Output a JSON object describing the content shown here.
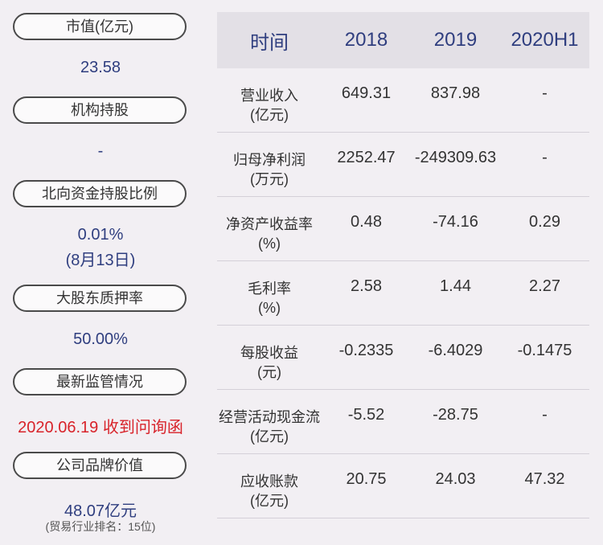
{
  "left": {
    "market_cap": {
      "label": "市值(亿元)",
      "value": "23.58"
    },
    "institutional": {
      "label": "机构持股",
      "value": "-"
    },
    "northbound": {
      "label": "北向资金持股比例",
      "value": "0.01%",
      "note": "(8月13日)"
    },
    "pledge": {
      "label": "大股东质押率",
      "value": "50.00%"
    },
    "regulation": {
      "label": "最新监管情况",
      "value": "2020.06.19 收到问询函"
    },
    "brand": {
      "label": "公司品牌价值",
      "value": "48.07亿元",
      "note": "(贸易行业排名：15位)"
    }
  },
  "table": {
    "headers": [
      "时间",
      "2018",
      "2019",
      "2020H1"
    ],
    "rows": [
      {
        "name": "营业收入",
        "unit": "(亿元)",
        "values": [
          "649.31",
          "837.98",
          "-"
        ]
      },
      {
        "name": "归母净利润",
        "unit": "(万元)",
        "values": [
          "2252.47",
          "-249309.63",
          "-"
        ]
      },
      {
        "name": "净资产收益率",
        "unit": "(%)",
        "values": [
          "0.48",
          "-74.16",
          "0.29"
        ]
      },
      {
        "name": "毛利率",
        "unit": "(%)",
        "values": [
          "2.58",
          "1.44",
          "2.27"
        ]
      },
      {
        "name": "每股收益",
        "unit": "(元)",
        "values": [
          "-0.2335",
          "-6.4029",
          "-0.1475"
        ]
      },
      {
        "name": "经营活动现金流",
        "unit": "(亿元)",
        "values": [
          "-5.52",
          "-28.75",
          "-"
        ]
      },
      {
        "name": "应收账款",
        "unit": "(亿元)",
        "values": [
          "20.75",
          "24.03",
          "47.32"
        ]
      }
    ]
  },
  "colors": {
    "background": "#f2eff3",
    "header_bg": "#e3e0e6",
    "value_blue": "#2f3e7f",
    "alert_red": "#d8232a"
  }
}
